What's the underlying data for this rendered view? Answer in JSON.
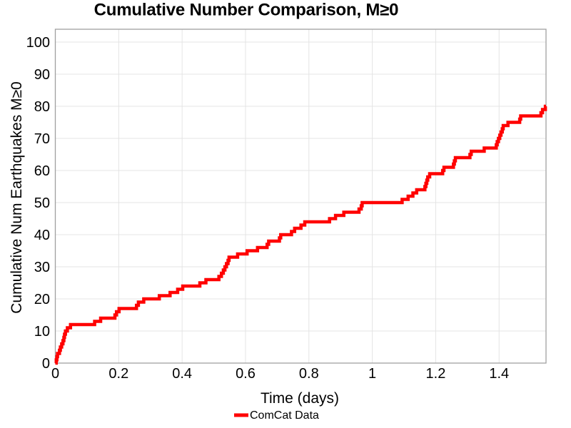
{
  "title": "Cumulative Number Comparison, M≥0",
  "chart_data": {
    "type": "line",
    "subtype": "step-post",
    "title": "Cumulative Number Comparison, M≥0",
    "xlabel": "Time (days)",
    "ylabel": "Cumulative Num Earthquakes M≥0",
    "legend_position": "bottom-center",
    "grid": true,
    "xlim": [
      0,
      1.548
    ],
    "ylim": [
      0,
      104
    ],
    "xticks": [
      0,
      0.2,
      0.4,
      0.6,
      0.8,
      1,
      1.2,
      1.4
    ],
    "xtick_labels": [
      "0",
      "0.2",
      "0.4",
      "0.6",
      "0.8",
      "1",
      "1.2",
      "1.4"
    ],
    "yticks": [
      0,
      10,
      20,
      30,
      40,
      50,
      60,
      70,
      80,
      90,
      100
    ],
    "ytick_labels": [
      "0",
      "10",
      "20",
      "30",
      "40",
      "50",
      "60",
      "70",
      "80",
      "90",
      "100"
    ],
    "series": [
      {
        "name": "ComCat Data",
        "color": "#ff0000",
        "line_width": 4.5,
        "start": [
          0,
          0
        ],
        "final_count": 80,
        "end_time": 1.548,
        "event_times": [
          0.003,
          0.005,
          0.007,
          0.013,
          0.016,
          0.02,
          0.024,
          0.027,
          0.029,
          0.032,
          0.038,
          0.048,
          0.124,
          0.143,
          0.188,
          0.193,
          0.201,
          0.256,
          0.262,
          0.279,
          0.328,
          0.362,
          0.386,
          0.402,
          0.456,
          0.475,
          0.516,
          0.524,
          0.53,
          0.535,
          0.54,
          0.545,
          0.548,
          0.575,
          0.605,
          0.638,
          0.668,
          0.673,
          0.707,
          0.711,
          0.745,
          0.755,
          0.775,
          0.787,
          0.865,
          0.884,
          0.91,
          0.958,
          0.965,
          0.968,
          1.094,
          1.113,
          1.128,
          1.14,
          1.166,
          1.169,
          1.172,
          1.175,
          1.181,
          1.222,
          1.226,
          1.256,
          1.259,
          1.262,
          1.308,
          1.312,
          1.353,
          1.391,
          1.394,
          1.398,
          1.402,
          1.406,
          1.41,
          1.413,
          1.428,
          1.465,
          1.468,
          1.532,
          1.537,
          1.546
        ]
      }
    ]
  },
  "colors": {
    "line": "#ff0000",
    "grid": "#e4e4e4",
    "frame": "#a0a0a0",
    "text": "#000000",
    "background": "#ffffff"
  }
}
